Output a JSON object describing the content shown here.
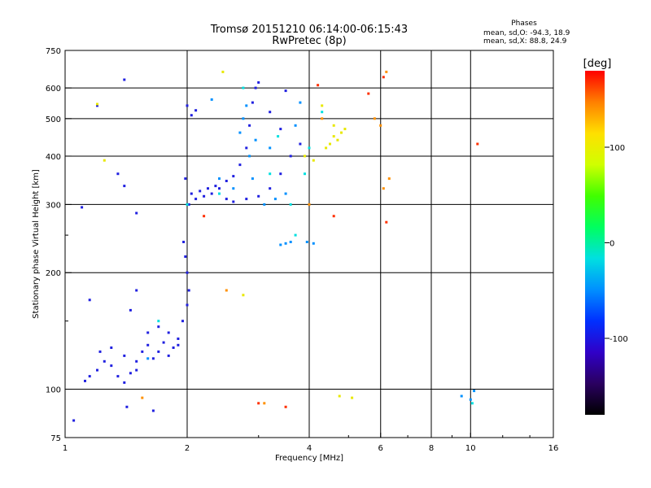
{
  "chart_data": {
    "type": "scatter",
    "title": "Tromsø 20151210 06:14:00-06:15:43",
    "subtitle": "RwPretec (8p)",
    "xlabel": "Frequency [MHz]",
    "ylabel": "Stationary phase Virtual Height [km]",
    "x_scale": "log",
    "y_scale": "log",
    "xlim": [
      1,
      16
    ],
    "ylim": [
      75,
      750
    ],
    "x_ticks": [
      1,
      2,
      4,
      6,
      8,
      10,
      16
    ],
    "x_gridlines": [
      2,
      4,
      6,
      8,
      10
    ],
    "y_ticks": [
      75,
      100,
      200,
      300,
      400,
      500,
      600,
      750
    ],
    "y_gridlines": [
      100,
      200,
      300,
      400,
      500,
      600
    ],
    "grid": true,
    "legend": {
      "title": "Phases",
      "lines": [
        "mean, sd,O: -94.3, 18.9",
        "mean, sd,X: 88.8, 24.9"
      ],
      "position": "top-right"
    },
    "colorbar": {
      "label": "[deg]",
      "range": [
        -180,
        180
      ],
      "ticks": [
        100,
        0,
        -100
      ],
      "colors": [
        "#000000",
        "#2a0060",
        "#3000c8",
        "#0030ff",
        "#0090ff",
        "#00e0e0",
        "#00ff60",
        "#40ff00",
        "#d0ff00",
        "#ffe000",
        "#ff8000",
        "#ff0000"
      ]
    },
    "series": [
      {
        "color": "#2020e0",
        "points": [
          [
            1.12,
            105
          ],
          [
            1.15,
            108
          ],
          [
            1.2,
            112
          ],
          [
            1.25,
            118
          ],
          [
            1.3,
            115
          ],
          [
            1.35,
            108
          ],
          [
            1.4,
            104
          ],
          [
            1.45,
            110
          ],
          [
            1.5,
            118
          ],
          [
            1.55,
            125
          ],
          [
            1.6,
            130
          ],
          [
            1.65,
            120
          ],
          [
            1.7,
            125
          ],
          [
            1.75,
            132
          ],
          [
            1.8,
            140
          ],
          [
            1.85,
            128
          ],
          [
            1.9,
            135
          ],
          [
            1.95,
            150
          ],
          [
            2.0,
            165
          ],
          [
            2.02,
            180
          ],
          [
            2.0,
            200
          ],
          [
            1.98,
            220
          ],
          [
            1.96,
            240
          ],
          [
            1.22,
            125
          ],
          [
            1.3,
            128
          ],
          [
            1.4,
            122
          ],
          [
            1.5,
            112
          ],
          [
            1.6,
            140
          ],
          [
            1.7,
            145
          ],
          [
            1.8,
            122
          ],
          [
            1.9,
            130
          ],
          [
            2.05,
            320
          ],
          [
            2.1,
            310
          ],
          [
            2.15,
            325
          ],
          [
            2.2,
            315
          ],
          [
            2.25,
            330
          ],
          [
            2.3,
            320
          ],
          [
            2.35,
            335
          ],
          [
            2.4,
            330
          ],
          [
            2.5,
            345
          ],
          [
            2.6,
            355
          ],
          [
            2.7,
            380
          ],
          [
            2.8,
            420
          ],
          [
            2.85,
            480
          ],
          [
            2.9,
            550
          ],
          [
            2.95,
            600
          ],
          [
            3.0,
            620
          ],
          [
            2.0,
            540
          ],
          [
            2.05,
            510
          ],
          [
            2.1,
            525
          ],
          [
            1.98,
            350
          ],
          [
            2.02,
            300
          ],
          [
            2.5,
            310
          ],
          [
            2.6,
            305
          ],
          [
            2.8,
            310
          ],
          [
            3.0,
            315
          ],
          [
            3.2,
            330
          ],
          [
            3.4,
            360
          ],
          [
            3.6,
            400
          ],
          [
            3.8,
            430
          ],
          [
            3.4,
            470
          ],
          [
            3.2,
            520
          ],
          [
            3.5,
            590
          ],
          [
            1.05,
            83
          ],
          [
            1.42,
            90
          ],
          [
            1.65,
            88
          ],
          [
            1.4,
            630
          ],
          [
            1.2,
            540
          ],
          [
            1.1,
            295
          ],
          [
            1.35,
            360
          ],
          [
            1.4,
            335
          ],
          [
            1.5,
            285
          ],
          [
            1.15,
            170
          ],
          [
            1.45,
            160
          ],
          [
            1.5,
            180
          ]
        ]
      },
      {
        "color": "#0090ff",
        "points": [
          [
            2.7,
            460
          ],
          [
            2.75,
            500
          ],
          [
            2.8,
            540
          ],
          [
            2.85,
            400
          ],
          [
            2.9,
            350
          ],
          [
            3.1,
            300
          ],
          [
            3.3,
            310
          ],
          [
            3.5,
            320
          ],
          [
            3.4,
            236
          ],
          [
            3.5,
            238
          ],
          [
            3.6,
            240
          ],
          [
            3.95,
            240
          ],
          [
            4.1,
            238
          ],
          [
            2.3,
            560
          ],
          [
            2.6,
            330
          ],
          [
            10.0,
            94
          ],
          [
            9.5,
            96
          ],
          [
            10.2,
            99
          ],
          [
            3.2,
            420
          ],
          [
            3.8,
            550
          ],
          [
            2.95,
            440
          ],
          [
            1.6,
            120
          ],
          [
            3.7,
            480
          ],
          [
            2.4,
            350
          ]
        ]
      },
      {
        "color": "#00e0e0",
        "points": [
          [
            3.6,
            300
          ],
          [
            3.9,
            360
          ],
          [
            4.0,
            420
          ],
          [
            2.4,
            320
          ],
          [
            2.75,
            600
          ],
          [
            3.2,
            360
          ],
          [
            3.35,
            450
          ],
          [
            1.7,
            150
          ],
          [
            4.3,
            520
          ],
          [
            10.1,
            92
          ],
          [
            2.0,
            300
          ],
          [
            3.7,
            250
          ]
        ]
      },
      {
        "color": "#e8e800",
        "points": [
          [
            4.7,
            440
          ],
          [
            4.8,
            460
          ],
          [
            4.9,
            470
          ],
          [
            4.6,
            450
          ],
          [
            4.4,
            420
          ],
          [
            4.1,
            390
          ],
          [
            4.6,
            480
          ],
          [
            4.3,
            540
          ],
          [
            2.75,
            175
          ],
          [
            4.75,
            96
          ],
          [
            5.1,
            95
          ],
          [
            1.2,
            545
          ],
          [
            1.25,
            390
          ],
          [
            2.45,
            660
          ],
          [
            3.9,
            400
          ],
          [
            4.5,
            430
          ]
        ]
      },
      {
        "color": "#ff3000",
        "points": [
          [
            3.5,
            90
          ],
          [
            6.2,
            270
          ],
          [
            4.6,
            280
          ],
          [
            2.2,
            280
          ],
          [
            10.4,
            430
          ],
          [
            3.0,
            92
          ],
          [
            4.2,
            610
          ],
          [
            5.6,
            580
          ],
          [
            6.1,
            640
          ]
        ]
      },
      {
        "color": "#ff9000",
        "points": [
          [
            6.0,
            480
          ],
          [
            6.1,
            330
          ],
          [
            6.3,
            350
          ],
          [
            5.8,
            500
          ],
          [
            3.1,
            92
          ],
          [
            4.3,
            500
          ],
          [
            6.2,
            660
          ],
          [
            2.5,
            180
          ],
          [
            1.55,
            95
          ],
          [
            4.0,
            300
          ]
        ]
      }
    ]
  }
}
